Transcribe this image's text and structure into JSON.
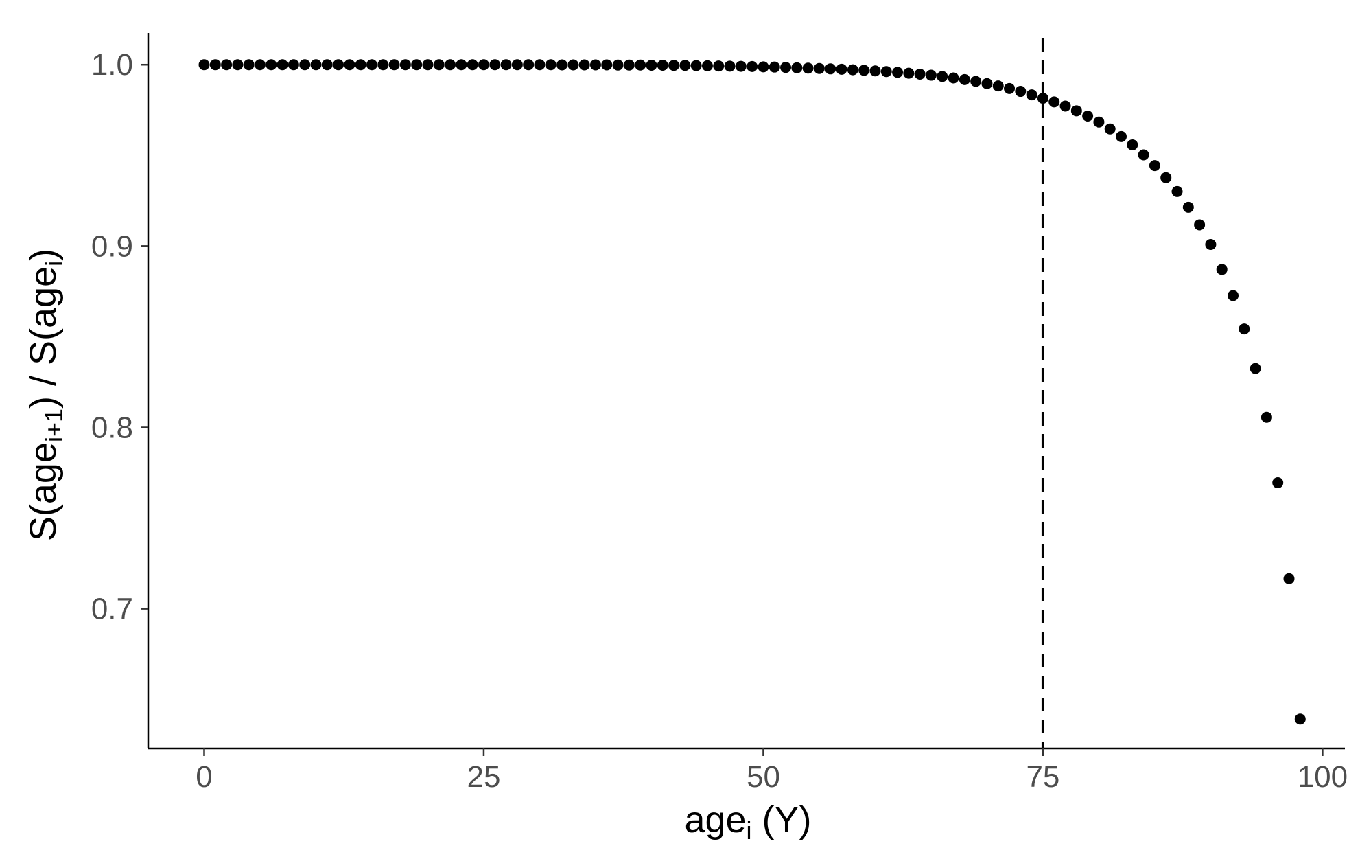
{
  "chart_data": {
    "type": "scatter",
    "xlabel": {
      "base": "age",
      "sub": "i",
      "suffix": " (Y)"
    },
    "ylabel": {
      "p1": "S(age",
      "sub1": "i+1",
      "p2": ") / S(age",
      "sub2": "i",
      "p3": ")"
    },
    "xlim": [
      -5,
      102
    ],
    "ylim": [
      0.623,
      1.0175
    ],
    "x_ticks": [
      0,
      25,
      50,
      75,
      100
    ],
    "x_tick_labels": [
      "0",
      "25",
      "50",
      "75",
      "100"
    ],
    "y_ticks": [
      0.7,
      0.8,
      0.9,
      1.0
    ],
    "y_tick_labels": [
      "0.7",
      "0.8",
      "0.9",
      "1.0"
    ],
    "vline_x": 75,
    "vline_style": "dashed",
    "grid": false,
    "point_color": "#000000",
    "x": [
      0,
      1,
      2,
      3,
      4,
      5,
      6,
      7,
      8,
      9,
      10,
      11,
      12,
      13,
      14,
      15,
      16,
      17,
      18,
      19,
      20,
      21,
      22,
      23,
      24,
      25,
      26,
      27,
      28,
      29,
      30,
      31,
      32,
      33,
      34,
      35,
      36,
      37,
      38,
      39,
      40,
      41,
      42,
      43,
      44,
      45,
      46,
      47,
      48,
      49,
      50,
      51,
      52,
      53,
      54,
      55,
      56,
      57,
      58,
      59,
      60,
      61,
      62,
      63,
      64,
      65,
      66,
      67,
      68,
      69,
      70,
      71,
      72,
      73,
      74,
      75,
      76,
      77,
      78,
      79,
      80,
      81,
      82,
      83,
      84,
      85,
      86,
      87,
      88,
      89,
      90,
      91,
      92,
      93,
      94,
      95,
      96,
      97,
      98
    ],
    "y": [
      1.0,
      1.0,
      1.0,
      1.0,
      1.0,
      1.0,
      1.0,
      1.0,
      1.0,
      1.0,
      1.0,
      1.0,
      1.0,
      1.0,
      1.0,
      1.0,
      1.0,
      1.0,
      1.0,
      1.0,
      1.0,
      1.0,
      1.0,
      1.0,
      1.0,
      1.0,
      1.0,
      1.0,
      1.0,
      1.0,
      1.0,
      1.0,
      0.9999,
      0.9999,
      0.9999,
      0.9999,
      0.9999,
      0.9998,
      0.9998,
      0.9998,
      0.9997,
      0.9997,
      0.9996,
      0.9996,
      0.9995,
      0.9994,
      0.9993,
      0.9992,
      0.9991,
      0.999,
      0.9988,
      0.9987,
      0.9985,
      0.9983,
      0.9981,
      0.9979,
      0.9977,
      0.9975,
      0.9972,
      0.9969,
      0.9966,
      0.9962,
      0.9958,
      0.9953,
      0.9948,
      0.9942,
      0.9935,
      0.9927,
      0.9918,
      0.9908,
      0.9896,
      0.9883,
      0.9869,
      0.9853,
      0.9834,
      0.9815,
      0.9795,
      0.9772,
      0.9746,
      0.9717,
      0.9684,
      0.9646,
      0.9604,
      0.9558,
      0.9503,
      0.9444,
      0.9377,
      0.9301,
      0.9214,
      0.9117,
      0.9009,
      0.8871,
      0.8727,
      0.8543,
      0.8325,
      0.8056,
      0.7695,
      0.7166,
      0.6392
    ]
  }
}
